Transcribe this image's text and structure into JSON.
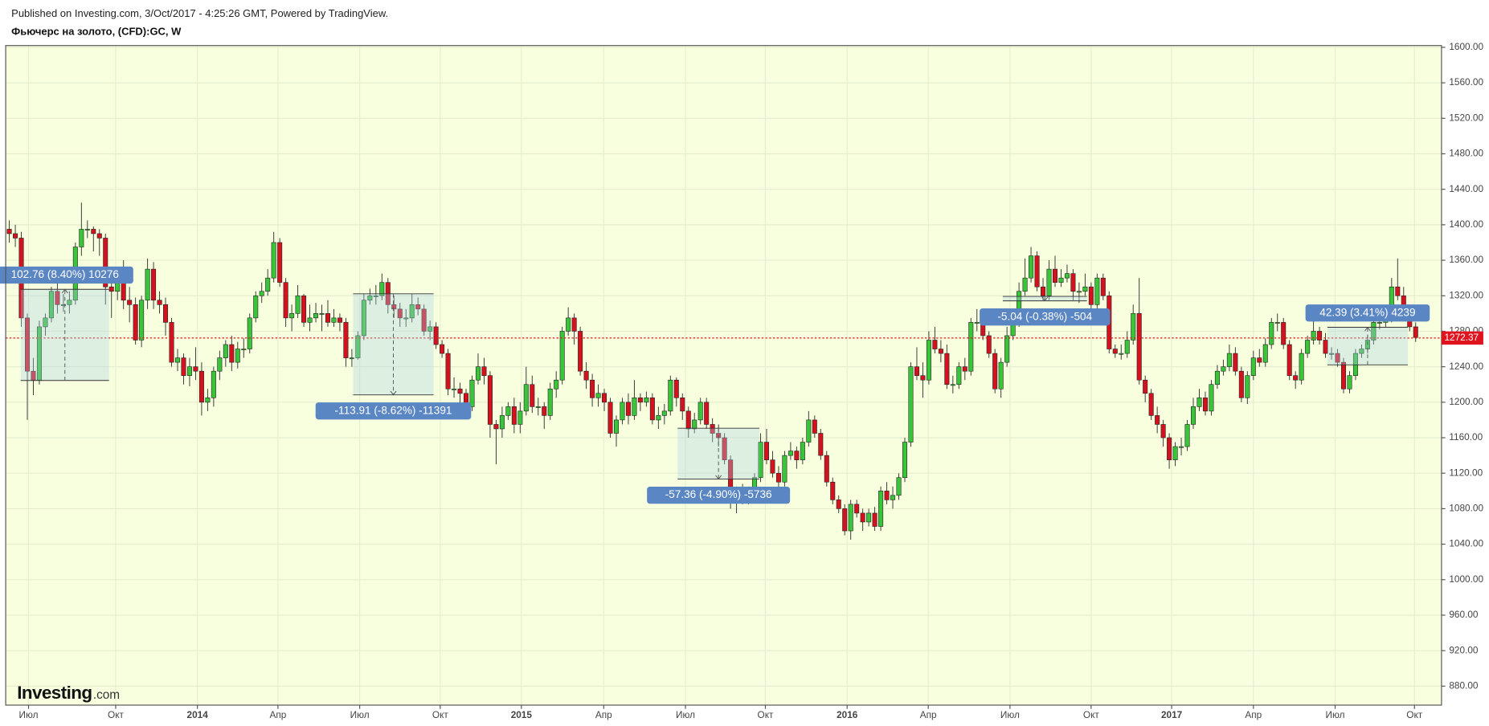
{
  "header": {
    "published": "Published on Investing.com, 3/Oct/2017 - 4:25:26 GMT, Powered by TradingView.",
    "symbol": "Фьючерс на золото, (CFD):GC, W"
  },
  "watermark": {
    "brand": "Investing",
    "suffix": ".com"
  },
  "chart_data": {
    "type": "candlestick",
    "up_color": "#39c439",
    "down_color": "#d4121f",
    "grid": true,
    "background": "#f7ffdf",
    "open": [
      1395,
      1390,
      1385,
      1295,
      1235,
      1225,
      1285,
      1295,
      1325,
      1310,
      1310,
      1315,
      1375,
      1395,
      1395,
      1390,
      1385,
      1330,
      1325,
      1335,
      1315,
      1310,
      1270,
      1315,
      1350,
      1315,
      1310,
      1290,
      1245,
      1250,
      1230,
      1240,
      1235,
      1200,
      1205,
      1235,
      1250,
      1265,
      1245,
      1260,
      1260,
      1295,
      1320,
      1325,
      1340,
      1380,
      1335,
      1295,
      1300,
      1320,
      1290,
      1295,
      1300,
      1300,
      1290,
      1295,
      1290,
      1250,
      1250,
      1275,
      1315,
      1320,
      1320,
      1335,
      1310,
      1305,
      1295,
      1295,
      1310,
      1305,
      1280,
      1285,
      1265,
      1255,
      1215,
      1215,
      1210,
      1195,
      1225,
      1240,
      1230,
      1175,
      1170,
      1185,
      1195,
      1175,
      1190,
      1220,
      1195,
      1195,
      1185,
      1215,
      1225,
      1280,
      1295,
      1280,
      1235,
      1225,
      1205,
      1210,
      1200,
      1165,
      1180,
      1200,
      1185,
      1205,
      1200,
      1205,
      1180,
      1185,
      1190,
      1225,
      1205,
      1190,
      1170,
      1180,
      1200,
      1175,
      1165,
      1160,
      1135,
      1095,
      1100,
      1095,
      1095,
      1115,
      1155,
      1135,
      1120,
      1110,
      1140,
      1145,
      1135,
      1155,
      1180,
      1165,
      1140,
      1110,
      1090,
      1080,
      1055,
      1085,
      1075,
      1065,
      1075,
      1060,
      1100,
      1090,
      1095,
      1115,
      1155,
      1240,
      1230,
      1225,
      1270,
      1260,
      1255,
      1220,
      1220,
      1240,
      1235,
      1290,
      1290,
      1275,
      1255,
      1215,
      1245,
      1275,
      1290,
      1325,
      1340,
      1365,
      1330,
      1320,
      1350,
      1335,
      1340,
      1345,
      1325,
      1325,
      1330,
      1310,
      1340,
      1320,
      1260,
      1255,
      1255,
      1270,
      1300,
      1225,
      1210,
      1185,
      1175,
      1160,
      1135,
      1150,
      1150,
      1175,
      1195,
      1205,
      1190,
      1220,
      1235,
      1240,
      1255,
      1235,
      1205,
      1230,
      1250,
      1245,
      1265,
      1290,
      1290,
      1265,
      1230,
      1225,
      1255,
      1270,
      1280,
      1270,
      1255,
      1255,
      1245,
      1215,
      1230,
      1255,
      1260,
      1270,
      1290,
      1290,
      1295,
      1330,
      1320,
      1300,
      1285
    ],
    "high": [
      1405,
      1400,
      1392,
      1300,
      1250,
      1292,
      1300,
      1330,
      1348,
      1322,
      1325,
      1380,
      1425,
      1405,
      1398,
      1395,
      1390,
      1345,
      1345,
      1360,
      1330,
      1318,
      1320,
      1362,
      1358,
      1325,
      1318,
      1295,
      1260,
      1255,
      1250,
      1262,
      1245,
      1215,
      1240,
      1258,
      1270,
      1275,
      1268,
      1272,
      1300,
      1325,
      1335,
      1350,
      1392,
      1385,
      1340,
      1310,
      1332,
      1322,
      1310,
      1312,
      1310,
      1315,
      1305,
      1300,
      1295,
      1260,
      1280,
      1322,
      1328,
      1332,
      1345,
      1340,
      1320,
      1312,
      1305,
      1322,
      1318,
      1310,
      1292,
      1290,
      1270,
      1260,
      1228,
      1222,
      1215,
      1230,
      1255,
      1250,
      1235,
      1180,
      1195,
      1200,
      1205,
      1200,
      1240,
      1230,
      1205,
      1200,
      1222,
      1235,
      1285,
      1307,
      1300,
      1285,
      1245,
      1232,
      1220,
      1215,
      1205,
      1185,
      1205,
      1210,
      1225,
      1210,
      1212,
      1210,
      1195,
      1198,
      1230,
      1228,
      1210,
      1195,
      1188,
      1205,
      1205,
      1182,
      1175,
      1165,
      1140,
      1105,
      1108,
      1105,
      1120,
      1165,
      1170,
      1145,
      1128,
      1145,
      1155,
      1150,
      1160,
      1190,
      1185,
      1170,
      1145,
      1115,
      1095,
      1085,
      1090,
      1090,
      1080,
      1080,
      1082,
      1105,
      1110,
      1105,
      1120,
      1160,
      1245,
      1262,
      1245,
      1280,
      1285,
      1270,
      1265,
      1230,
      1245,
      1250,
      1295,
      1305,
      1300,
      1280,
      1260,
      1250,
      1285,
      1300,
      1335,
      1362,
      1375,
      1370,
      1340,
      1360,
      1365,
      1350,
      1355,
      1350,
      1335,
      1345,
      1335,
      1345,
      1345,
      1325,
      1265,
      1265,
      1280,
      1310,
      1340,
      1230,
      1215,
      1195,
      1180,
      1165,
      1155,
      1160,
      1180,
      1205,
      1215,
      1212,
      1225,
      1242,
      1248,
      1265,
      1262,
      1240,
      1235,
      1258,
      1260,
      1272,
      1295,
      1300,
      1295,
      1270,
      1235,
      1260,
      1275,
      1295,
      1285,
      1278,
      1262,
      1260,
      1250,
      1235,
      1260,
      1265,
      1275,
      1295,
      1300,
      1305,
      1340,
      1362,
      1330,
      1310,
      1290
    ],
    "low": [
      1380,
      1375,
      1285,
      1180,
      1208,
      1220,
      1275,
      1290,
      1300,
      1302,
      1300,
      1310,
      1365,
      1385,
      1370,
      1365,
      1310,
      1295,
      1315,
      1305,
      1290,
      1265,
      1262,
      1305,
      1305,
      1300,
      1275,
      1240,
      1235,
      1220,
      1218,
      1225,
      1185,
      1190,
      1195,
      1225,
      1240,
      1235,
      1238,
      1250,
      1255,
      1290,
      1312,
      1320,
      1335,
      1330,
      1285,
      1280,
      1295,
      1285,
      1280,
      1290,
      1280,
      1285,
      1285,
      1280,
      1240,
      1240,
      1248,
      1270,
      1310,
      1310,
      1315,
      1300,
      1295,
      1285,
      1285,
      1290,
      1298,
      1275,
      1270,
      1260,
      1250,
      1208,
      1205,
      1195,
      1185,
      1190,
      1220,
      1220,
      1160,
      1130,
      1160,
      1180,
      1165,
      1165,
      1185,
      1188,
      1185,
      1170,
      1180,
      1205,
      1220,
      1275,
      1265,
      1230,
      1215,
      1195,
      1195,
      1190,
      1160,
      1150,
      1175,
      1175,
      1180,
      1190,
      1195,
      1175,
      1170,
      1175,
      1185,
      1195,
      1180,
      1160,
      1165,
      1175,
      1170,
      1155,
      1150,
      1130,
      1080,
      1075,
      1085,
      1085,
      1090,
      1110,
      1130,
      1115,
      1100,
      1105,
      1135,
      1125,
      1130,
      1150,
      1160,
      1135,
      1105,
      1085,
      1075,
      1050,
      1045,
      1070,
      1055,
      1060,
      1055,
      1055,
      1085,
      1080,
      1090,
      1110,
      1150,
      1225,
      1205,
      1220,
      1255,
      1245,
      1215,
      1210,
      1215,
      1225,
      1230,
      1280,
      1270,
      1250,
      1210,
      1205,
      1240,
      1270,
      1285,
      1320,
      1335,
      1325,
      1315,
      1315,
      1330,
      1330,
      1335,
      1315,
      1312,
      1320,
      1305,
      1305,
      1315,
      1255,
      1250,
      1248,
      1250,
      1265,
      1220,
      1200,
      1180,
      1165,
      1150,
      1125,
      1128,
      1140,
      1145,
      1170,
      1190,
      1185,
      1185,
      1215,
      1230,
      1235,
      1230,
      1200,
      1198,
      1225,
      1240,
      1240,
      1260,
      1280,
      1260,
      1225,
      1215,
      1220,
      1250,
      1265,
      1265,
      1250,
      1248,
      1240,
      1210,
      1210,
      1225,
      1250,
      1255,
      1265,
      1282,
      1285,
      1290,
      1315,
      1295,
      1280,
      1268
    ],
    "close": [
      1390,
      1385,
      1295,
      1235,
      1225,
      1285,
      1295,
      1325,
      1310,
      1310,
      1315,
      1375,
      1395,
      1395,
      1390,
      1385,
      1330,
      1325,
      1335,
      1315,
      1310,
      1270,
      1315,
      1350,
      1315,
      1310,
      1290,
      1245,
      1250,
      1230,
      1240,
      1235,
      1200,
      1205,
      1235,
      1250,
      1265,
      1245,
      1260,
      1260,
      1295,
      1320,
      1325,
      1340,
      1380,
      1335,
      1295,
      1300,
      1320,
      1290,
      1295,
      1300,
      1300,
      1290,
      1295,
      1290,
      1250,
      1250,
      1275,
      1315,
      1320,
      1320,
      1335,
      1310,
      1305,
      1295,
      1295,
      1310,
      1305,
      1280,
      1285,
      1265,
      1255,
      1215,
      1215,
      1210,
      1195,
      1225,
      1240,
      1230,
      1175,
      1170,
      1185,
      1195,
      1175,
      1190,
      1220,
      1195,
      1195,
      1185,
      1215,
      1225,
      1280,
      1295,
      1280,
      1235,
      1225,
      1205,
      1210,
      1200,
      1165,
      1180,
      1200,
      1185,
      1205,
      1200,
      1205,
      1180,
      1185,
      1190,
      1225,
      1205,
      1190,
      1170,
      1180,
      1200,
      1175,
      1165,
      1160,
      1135,
      1095,
      1100,
      1095,
      1095,
      1115,
      1155,
      1135,
      1120,
      1110,
      1140,
      1145,
      1135,
      1155,
      1180,
      1165,
      1140,
      1110,
      1090,
      1080,
      1055,
      1085,
      1075,
      1065,
      1075,
      1060,
      1100,
      1090,
      1095,
      1115,
      1155,
      1240,
      1230,
      1225,
      1270,
      1260,
      1255,
      1220,
      1220,
      1240,
      1235,
      1290,
      1290,
      1275,
      1255,
      1215,
      1245,
      1275,
      1290,
      1325,
      1340,
      1365,
      1330,
      1320,
      1350,
      1335,
      1340,
      1345,
      1325,
      1325,
      1330,
      1310,
      1340,
      1320,
      1260,
      1255,
      1255,
      1270,
      1300,
      1225,
      1210,
      1185,
      1175,
      1160,
      1135,
      1150,
      1150,
      1175,
      1195,
      1205,
      1190,
      1220,
      1235,
      1240,
      1255,
      1235,
      1205,
      1230,
      1250,
      1245,
      1265,
      1290,
      1290,
      1265,
      1230,
      1225,
      1255,
      1270,
      1280,
      1270,
      1255,
      1255,
      1245,
      1215,
      1230,
      1255,
      1260,
      1270,
      1290,
      1290,
      1295,
      1330,
      1320,
      1300,
      1285,
      1273
    ],
    "xlim": [
      -0.6,
      238.3
    ],
    "xticks": [
      {
        "value": 3.2,
        "label": "Июл"
      },
      {
        "value": 17.7,
        "label": "Окт"
      },
      {
        "value": 31.3,
        "label": "2014"
      },
      {
        "value": 44.7,
        "label": "Апр"
      },
      {
        "value": 58.3,
        "label": "Июл"
      },
      {
        "value": 71.7,
        "label": "Окт"
      },
      {
        "value": 85.2,
        "label": "2015"
      },
      {
        "value": 98.9,
        "label": "Апр"
      },
      {
        "value": 112.5,
        "label": "Июл"
      },
      {
        "value": 125.8,
        "label": "Окт"
      },
      {
        "value": 139.4,
        "label": "2016"
      },
      {
        "value": 152.9,
        "label": "Апр"
      },
      {
        "value": 166.5,
        "label": "Июл"
      },
      {
        "value": 180.0,
        "label": "Окт"
      },
      {
        "value": 193.4,
        "label": "2017"
      },
      {
        "value": 207.0,
        "label": "Апр"
      },
      {
        "value": 220.6,
        "label": "Июл"
      },
      {
        "value": 233.8,
        "label": "Окт"
      }
    ],
    "ylim": [
      858.6,
      1602
    ],
    "yticks": [
      {
        "value": 880,
        "label": "880.00"
      },
      {
        "value": 920,
        "label": "920.00"
      },
      {
        "value": 960,
        "label": "960.00"
      },
      {
        "value": 1000,
        "label": "1000.00"
      },
      {
        "value": 1040,
        "label": "1040.00"
      },
      {
        "value": 1080,
        "label": "1080.00"
      },
      {
        "value": 1120,
        "label": "1120.00"
      },
      {
        "value": 1160,
        "label": "1160.00"
      },
      {
        "value": 1200,
        "label": "1200.00"
      },
      {
        "value": 1240,
        "label": "1240.00"
      },
      {
        "value": 1280,
        "label": "1280.00"
      },
      {
        "value": 1320,
        "label": "1320.00"
      },
      {
        "value": 1360,
        "label": "1360.00"
      },
      {
        "value": 1400,
        "label": "1400.00"
      },
      {
        "value": 1440,
        "label": "1440.00"
      },
      {
        "value": 1480,
        "label": "1480.00"
      },
      {
        "value": 1520,
        "label": "1520.00"
      },
      {
        "value": 1560,
        "label": "1560.00"
      },
      {
        "value": 1600,
        "label": "1600.00"
      }
    ],
    "last_price": 1272.37,
    "measures": [
      {
        "label": "102.76 (8.40%) 10276",
        "from_bar": 1.9,
        "to_bar": 16.6,
        "start": 1224.5,
        "end": 1327.26
      },
      {
        "label": "-113.91 (-8.62%) -11391",
        "from_bar": 57.2,
        "to_bar": 70.6,
        "start": 1322.2,
        "end": 1208.29
      },
      {
        "label": "-57.36 (-4.90%) -5736",
        "from_bar": 111.2,
        "to_bar": 124.8,
        "start": 1170.7,
        "end": 1113.34
      },
      {
        "label": "-5.04 (-0.38%) -504",
        "from_bar": 165.3,
        "to_bar": 179.3,
        "start": 1319.3,
        "end": 1314.26
      },
      {
        "label": "42.39 (3.41%) 4239",
        "from_bar": 219.3,
        "to_bar": 232.7,
        "start": 1242.1,
        "end": 1284.49
      }
    ]
  }
}
